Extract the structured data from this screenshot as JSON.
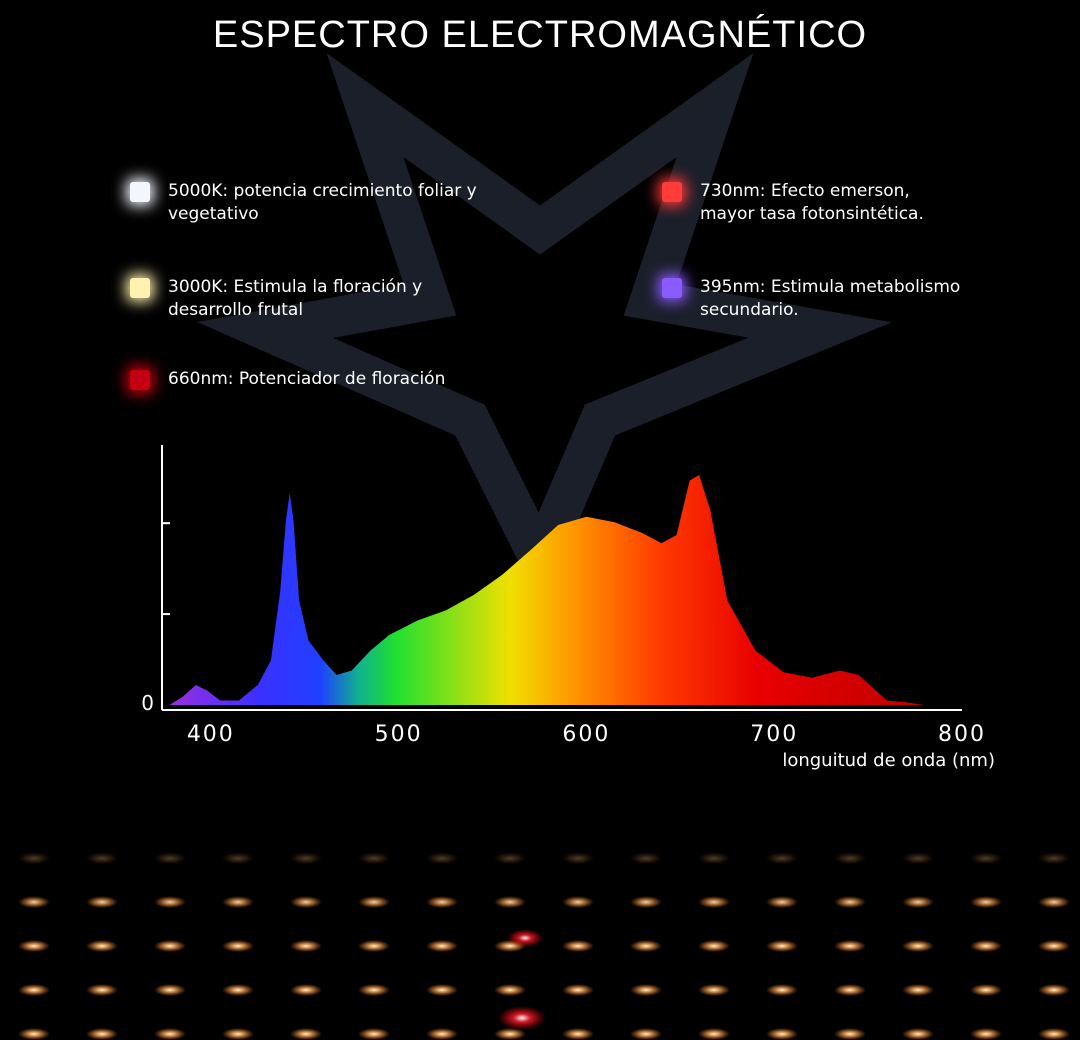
{
  "chart_data": {
    "type": "area",
    "title": "ESPECTRO ELECTROMAGNÉTICO",
    "x_label": "longuitud de onda (nm)",
    "x": [
      378,
      385,
      392,
      398,
      405,
      415,
      425,
      432,
      437,
      440,
      442,
      444,
      447,
      452,
      460,
      467,
      475,
      485,
      495,
      510,
      525,
      540,
      555,
      570,
      585,
      600,
      615,
      630,
      640,
      648,
      655,
      660,
      666,
      675,
      690,
      705,
      720,
      735,
      745,
      760,
      770,
      780
    ],
    "values": [
      0,
      0.09,
      0.22,
      0.16,
      0.05,
      0.05,
      0.22,
      0.49,
      1.26,
      2.03,
      2.33,
      2.03,
      1.15,
      0.71,
      0.49,
      0.33,
      0.38,
      0.6,
      0.77,
      0.93,
      1.04,
      1.21,
      1.43,
      1.7,
      1.98,
      2.07,
      2.01,
      1.89,
      1.78,
      1.87,
      2.47,
      2.53,
      2.14,
      1.15,
      0.6,
      0.36,
      0.3,
      0.38,
      0.33,
      0.05,
      0.03,
      0
    ],
    "xlim": [
      374,
      800
    ],
    "xticks": [
      400,
      500,
      600,
      700,
      800
    ],
    "ylim": [
      0,
      2.86
    ],
    "yticks": [
      0,
      {
        "value": 1,
        "label": null
      },
      {
        "value": 2,
        "label": null
      }
    ],
    "legend": [
      {
        "label": "5000K: potencia crecimiento foliar y vegetativo",
        "color": "#f4f6ff"
      },
      {
        "label": "730nm: Efecto emerson, mayor tasa fotonsintética.",
        "color": "#ff3a3a"
      },
      {
        "label": "3000K: Estimula la floración y desarrollo frutal",
        "color": "#fff2b0"
      },
      {
        "label": "395nm: Estimula metabolismo secundario.",
        "color": "#8a5cff"
      },
      {
        "label": "660nm: Potenciador de floración",
        "color": "#c40010"
      }
    ]
  }
}
